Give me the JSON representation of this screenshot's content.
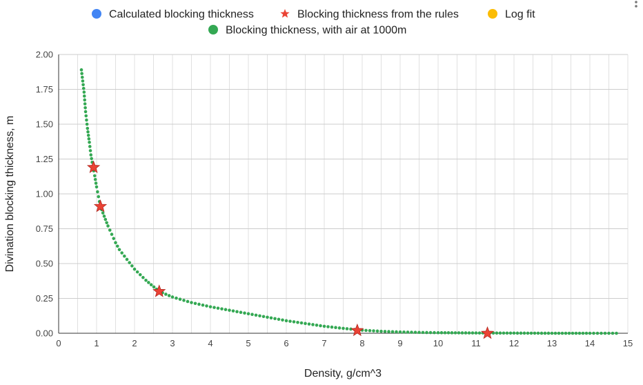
{
  "chart_data": {
    "type": "scatter",
    "title": "",
    "xlabel": "Density, g/cm^3",
    "ylabel": "Divination blocking thickness, m",
    "xlim": [
      0,
      15
    ],
    "ylim": [
      0,
      2
    ],
    "grid": true,
    "legend_position": "top",
    "x_ticks": [
      "0",
      "1",
      "2",
      "3",
      "4",
      "5",
      "6",
      "7",
      "8",
      "9",
      "10",
      "11",
      "12",
      "13",
      "14",
      "15"
    ],
    "y_ticks": [
      "0.00",
      "0.25",
      "0.50",
      "0.75",
      "1.00",
      "1.25",
      "1.50",
      "1.75",
      "2.00"
    ],
    "legend": [
      {
        "label": "Calculated blocking thickness",
        "marker": "circle",
        "color": "#4285f4"
      },
      {
        "label": "Blocking thickness from the rules",
        "marker": "star",
        "color": "#ea4335"
      },
      {
        "label": "Log fit",
        "marker": "circle",
        "color": "#fbbc04"
      },
      {
        "label": "Blocking thickness, with air at 1000m",
        "marker": "circle",
        "color": "#34a853"
      }
    ],
    "series": [
      {
        "name": "Blocking thickness from the rules",
        "marker": "star",
        "color": "#ea4335",
        "points": [
          {
            "x": 0.92,
            "y": 1.19
          },
          {
            "x": 1.1,
            "y": 0.91
          },
          {
            "x": 2.65,
            "y": 0.3
          },
          {
            "x": 7.87,
            "y": 0.02
          },
          {
            "x": 11.3,
            "y": 0.0
          }
        ]
      },
      {
        "name": "Blocking thickness, with air at 1000m",
        "marker": "circle",
        "color": "#34a853",
        "points": [
          {
            "x": 0.6,
            "y": 1.89
          },
          {
            "x": 0.67,
            "y": 1.73
          },
          {
            "x": 0.71,
            "y": 1.59
          },
          {
            "x": 0.76,
            "y": 1.47
          },
          {
            "x": 0.81,
            "y": 1.37
          },
          {
            "x": 0.85,
            "y": 1.28
          },
          {
            "x": 0.9,
            "y": 1.2
          },
          {
            "x": 0.95,
            "y": 1.13
          },
          {
            "x": 1.0,
            "y": 1.05
          },
          {
            "x": 1.05,
            "y": 0.98
          },
          {
            "x": 1.1,
            "y": 0.91
          },
          {
            "x": 1.2,
            "y": 0.84
          },
          {
            "x": 1.3,
            "y": 0.77
          },
          {
            "x": 1.4,
            "y": 0.71
          },
          {
            "x": 1.5,
            "y": 0.65
          },
          {
            "x": 1.6,
            "y": 0.6
          },
          {
            "x": 1.8,
            "y": 0.53
          },
          {
            "x": 2.0,
            "y": 0.46
          },
          {
            "x": 2.3,
            "y": 0.38
          },
          {
            "x": 2.65,
            "y": 0.3
          },
          {
            "x": 3.0,
            "y": 0.26
          },
          {
            "x": 3.5,
            "y": 0.22
          },
          {
            "x": 4.0,
            "y": 0.19
          },
          {
            "x": 4.5,
            "y": 0.165
          },
          {
            "x": 5.0,
            "y": 0.14
          },
          {
            "x": 5.5,
            "y": 0.115
          },
          {
            "x": 6.0,
            "y": 0.09
          },
          {
            "x": 6.5,
            "y": 0.07
          },
          {
            "x": 7.0,
            "y": 0.05
          },
          {
            "x": 7.5,
            "y": 0.035
          },
          {
            "x": 8.0,
            "y": 0.022
          },
          {
            "x": 8.5,
            "y": 0.014
          },
          {
            "x": 9.0,
            "y": 0.009
          },
          {
            "x": 9.5,
            "y": 0.006
          },
          {
            "x": 10.0,
            "y": 0.004
          },
          {
            "x": 11.0,
            "y": 0.002
          },
          {
            "x": 12.0,
            "y": 0.001
          },
          {
            "x": 13.0,
            "y": 0.0
          },
          {
            "x": 14.0,
            "y": 0.0
          },
          {
            "x": 14.7,
            "y": 0.0
          }
        ]
      }
    ]
  }
}
